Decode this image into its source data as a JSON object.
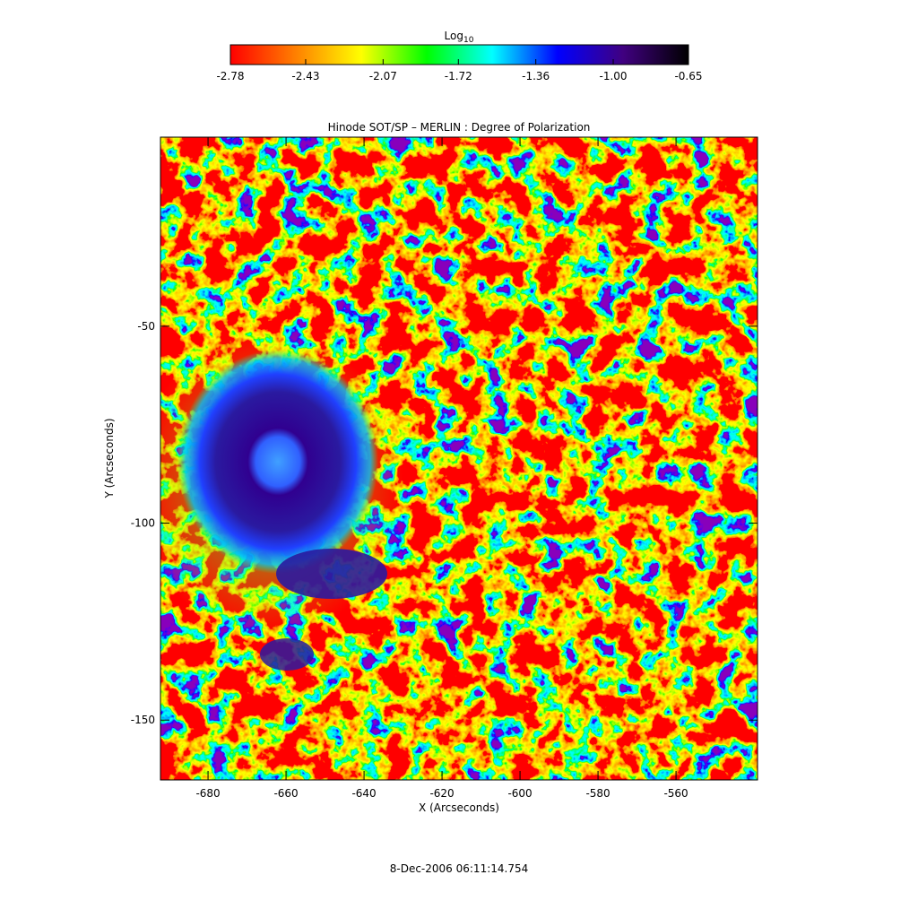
{
  "chart_data": {
    "type": "heatmap",
    "title": "Hinode SOT/SP – MERLIN : Degree of Polarization",
    "xlabel": "X (Arcseconds)",
    "ylabel": "Y (Arcseconds)",
    "footer": "8-Dec-2006 06:11:14.754",
    "colorbar_label": "Log",
    "colorbar_label_sub": "10",
    "colormap": [
      "#ff0000",
      "#ff8000",
      "#ffff00",
      "#00ff00",
      "#00ffff",
      "#0000ff",
      "#400080",
      "#000000"
    ],
    "clim": [
      -2.78,
      -0.65
    ],
    "cticks": [
      -2.78,
      -2.43,
      -2.07,
      -1.72,
      -1.36,
      {
        "value": -1.0,
        "label": "-1.00"
      },
      -0.65
    ],
    "xlim": [
      -692.2,
      -539.1
    ],
    "xticks": [
      -680,
      -660,
      -640,
      -620,
      -600,
      -580,
      -560
    ],
    "ylim": [
      -165.2,
      -2.0
    ],
    "yticks": [
      -50,
      -100,
      -150
    ]
  }
}
